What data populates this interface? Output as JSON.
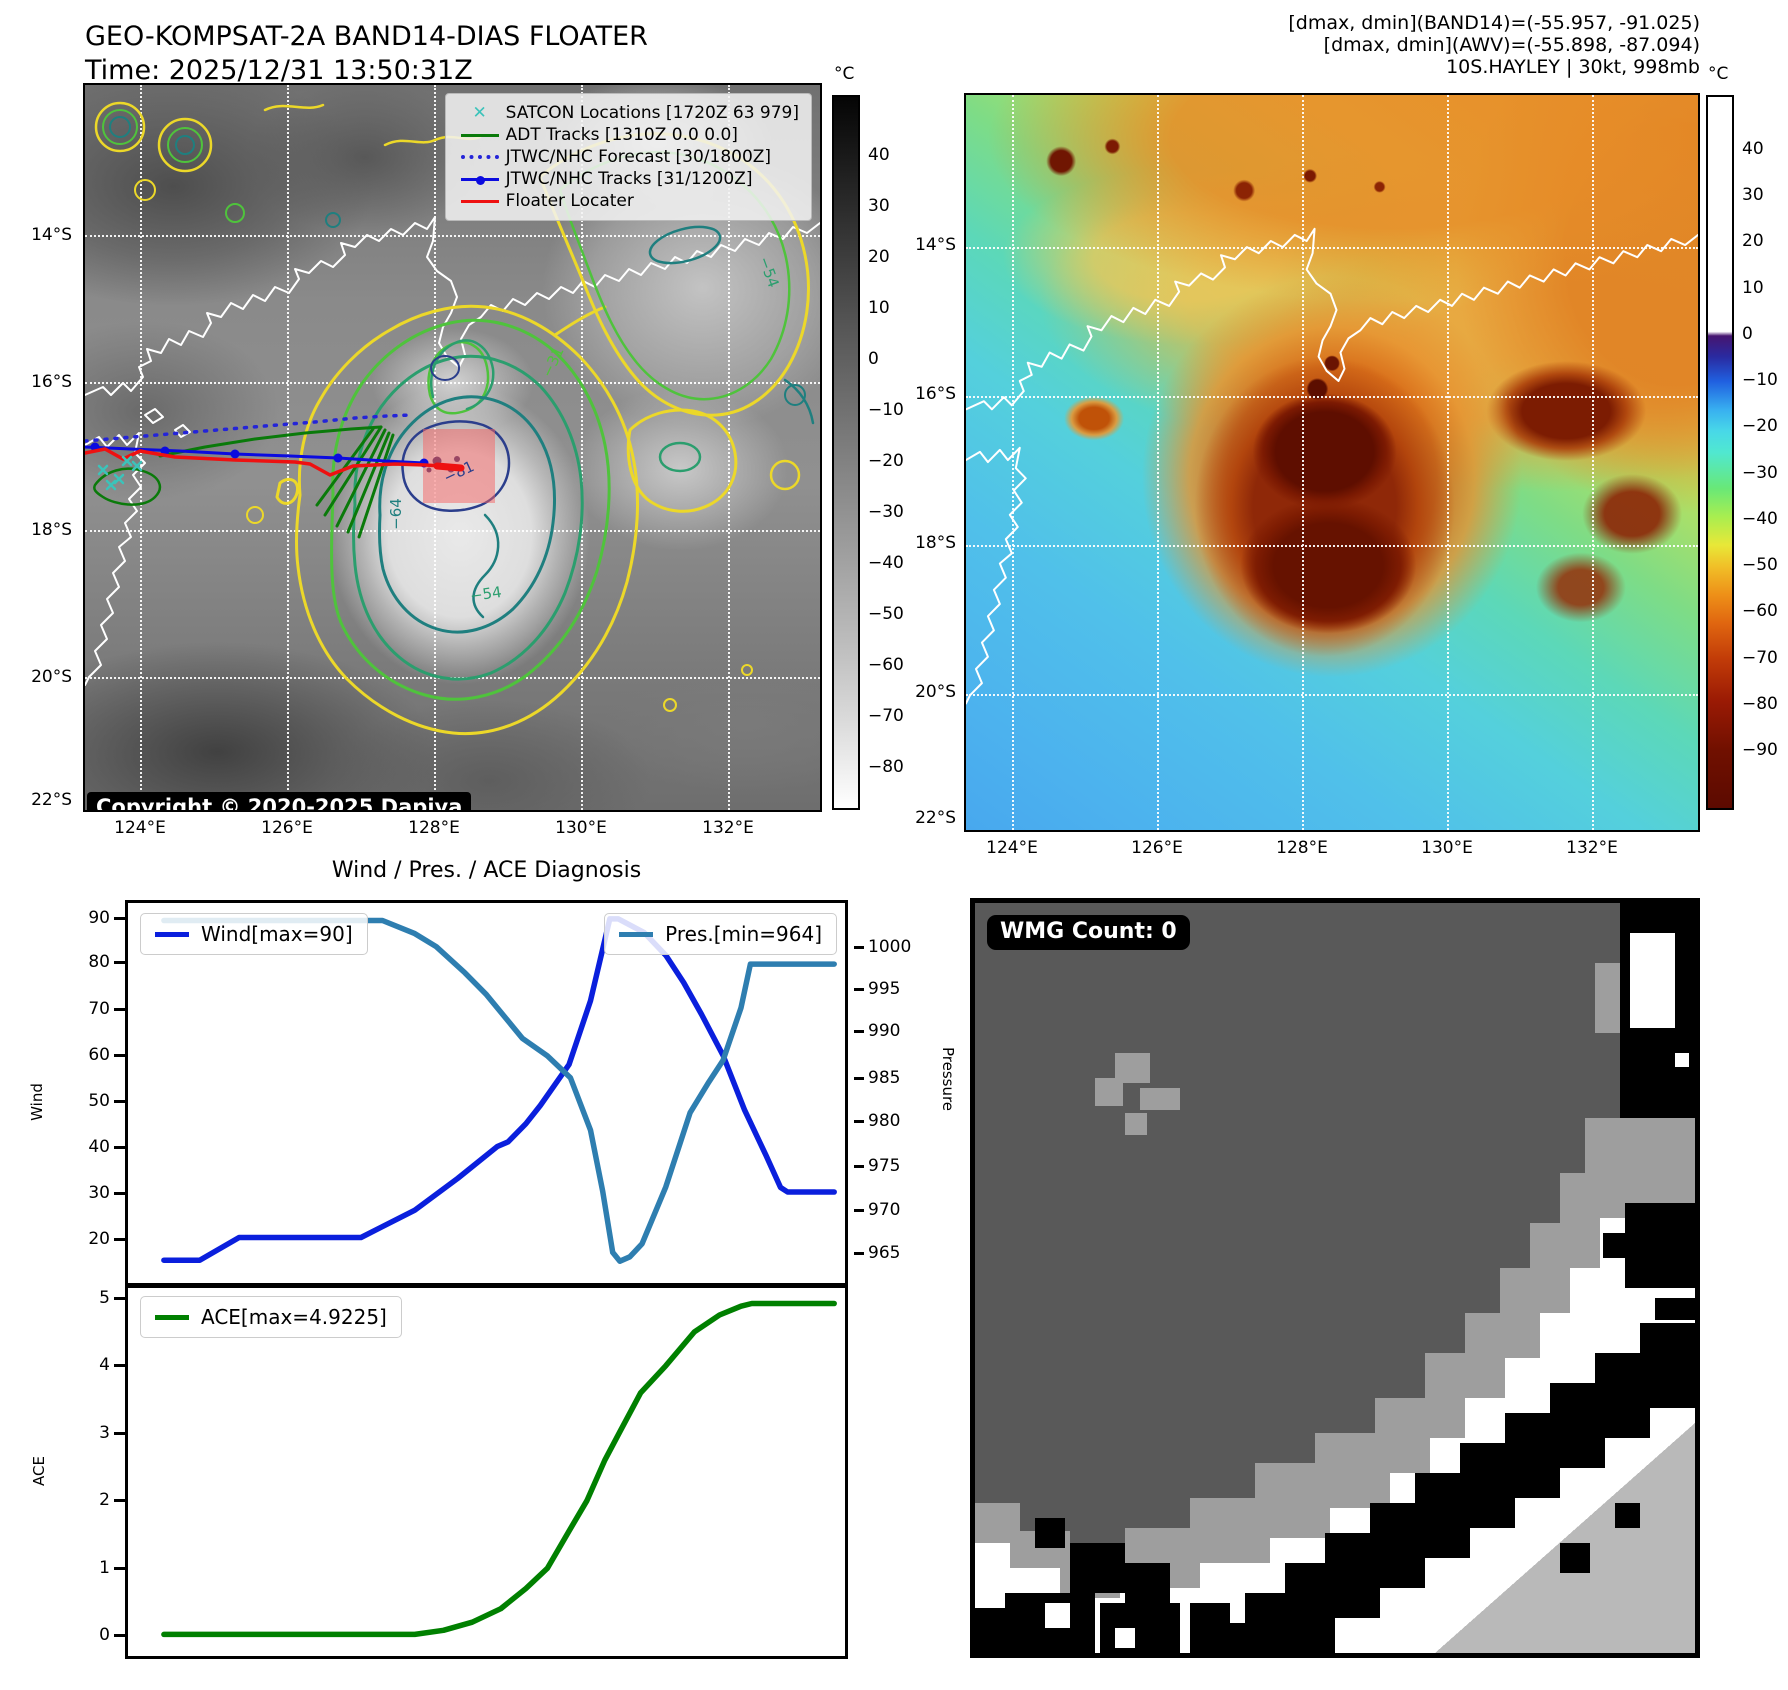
{
  "left_map": {
    "title_line1": "GEO-KOMPSAT-2A BAND14-DIAS FLOATER",
    "title_line2": "Time: 2025/12/31 13:50:31Z",
    "legend": [
      {
        "marker": "satcon-x",
        "label": "SATCON Locations [1720Z 63 979]"
      },
      {
        "marker": "line-green",
        "label": "ADT Tracks [1310Z 0.0 0.0]"
      },
      {
        "marker": "dotted-blue",
        "label": "JTWC/NHC Forecast [30/1800Z]"
      },
      {
        "marker": "line-dot-blue",
        "label": "JTWC/NHC Tracks [31/1200Z]"
      },
      {
        "marker": "line-red",
        "label": "Floater Locater"
      }
    ],
    "x_ticks": [
      "124°E",
      "126°E",
      "128°E",
      "130°E",
      "132°E"
    ],
    "y_ticks": [
      "14°S",
      "16°S",
      "18°S",
      "20°S",
      "22°S"
    ],
    "colorbar": {
      "unit": "°C",
      "ticks": [
        "40",
        "30",
        "20",
        "10",
        "0",
        "−10",
        "−20",
        "−30",
        "−40",
        "−50",
        "−60",
        "−70",
        "−80"
      ]
    },
    "contour_labels": {
      "minus64": "−64",
      "minus54a": "−54",
      "minus81": "−81",
      "minus31": "−31",
      "minus54b": "−54"
    },
    "copyright": "Copyright © 2020-2025 Dapiya"
  },
  "right_map": {
    "header_line1": "[dmax, dmin](BAND14)=(-55.957, -91.025)",
    "header_line2": "[dmax, dmin](AWV)=(-55.898, -87.094)",
    "header_line3": "10S.HAYLEY | 30kt, 998mb",
    "x_ticks": [
      "124°E",
      "126°E",
      "128°E",
      "130°E",
      "132°E"
    ],
    "y_ticks": [
      "14°S",
      "16°S",
      "18°S",
      "20°S",
      "22°S"
    ],
    "colorbar": {
      "unit": "°C",
      "ticks": [
        "40",
        "30",
        "20",
        "10",
        "0",
        "−10",
        "−20",
        "−30",
        "−40",
        "−50",
        "−60",
        "−70",
        "−80",
        "−90"
      ]
    }
  },
  "charts": {
    "title": "Wind / Pres. / ACE Diagnosis",
    "wind": {
      "legend": "Wind[max=90]",
      "color": "#0a1fdd",
      "axis_label": "Wind",
      "ticks": [
        "90",
        "80",
        "70",
        "60",
        "50",
        "40",
        "30",
        "20"
      ]
    },
    "pressure": {
      "legend": "Pres.[min=964]",
      "color": "#2e7eb0",
      "axis_label": "Pressure",
      "ticks": [
        "1000",
        "995",
        "990",
        "985",
        "980",
        "975",
        "970",
        "965"
      ]
    },
    "ace": {
      "legend": "ACE[max=4.9225]",
      "color": "#008000",
      "axis_label": "ACE",
      "ticks": [
        "5",
        "4",
        "3",
        "2",
        "1",
        "0"
      ]
    }
  },
  "chart_data": [
    {
      "type": "line",
      "svg_id": "wind-pres-svg",
      "title": "Wind / Pres. / ACE Diagnosis",
      "xlim": [
        0,
        1
      ],
      "series": [
        {
          "name": "Wind[max=90]",
          "color": "#0a1fdd",
          "axis": "left",
          "ylim": [
            10,
            93.5
          ],
          "x": [
            0.05,
            0.1,
            0.155,
            0.21,
            0.325,
            0.4,
            0.46,
            0.515,
            0.53,
            0.555,
            0.575,
            0.615,
            0.645,
            0.672,
            0.684,
            0.72,
            0.75,
            0.775,
            0.8,
            0.83,
            0.86,
            0.89,
            0.91,
            0.92,
            0.985
          ],
          "values": [
            15,
            15,
            20,
            20,
            20,
            26,
            33,
            40,
            41,
            45,
            49,
            58,
            72,
            90,
            90,
            87,
            82,
            76,
            69,
            60,
            48,
            38,
            31,
            30,
            30
          ]
        },
        {
          "name": "Pres.[min=964]",
          "color": "#2e7eb0",
          "axis": "right",
          "ylim": [
            961.5,
            1005
          ],
          "x": [
            0.05,
            0.15,
            0.25,
            0.355,
            0.4,
            0.43,
            0.47,
            0.5,
            0.55,
            0.585,
            0.617,
            0.645,
            0.662,
            0.676,
            0.686,
            0.7,
            0.717,
            0.75,
            0.784,
            0.81,
            0.83,
            0.855,
            0.868,
            0.9,
            0.985
          ],
          "values": [
            1003,
            1003,
            1003,
            1003,
            1001.5,
            1000,
            997,
            994.5,
            989.5,
            987.5,
            985,
            979,
            972,
            965,
            964,
            964.5,
            966,
            972.5,
            981,
            984.5,
            987,
            993,
            998,
            998,
            998
          ]
        }
      ]
    },
    {
      "type": "line",
      "svg_id": "ace-svg",
      "xlim": [
        0,
        1
      ],
      "series": [
        {
          "name": "ACE[max=4.9225]",
          "color": "#008000",
          "axis": "left",
          "ylim": [
            -0.3,
            5.15
          ],
          "x": [
            0.05,
            0.2,
            0.4,
            0.44,
            0.48,
            0.52,
            0.555,
            0.585,
            0.615,
            0.64,
            0.665,
            0.685,
            0.715,
            0.75,
            0.79,
            0.825,
            0.855,
            0.87,
            0.985
          ],
          "values": [
            0.02,
            0.02,
            0.02,
            0.08,
            0.2,
            0.4,
            0.7,
            1.0,
            1.55,
            2.0,
            2.6,
            3.0,
            3.6,
            4.0,
            4.5,
            4.75,
            4.88,
            4.92,
            4.92
          ]
        }
      ]
    }
  ],
  "wmg_panel": {
    "count_label": "WMG Count: 0"
  }
}
